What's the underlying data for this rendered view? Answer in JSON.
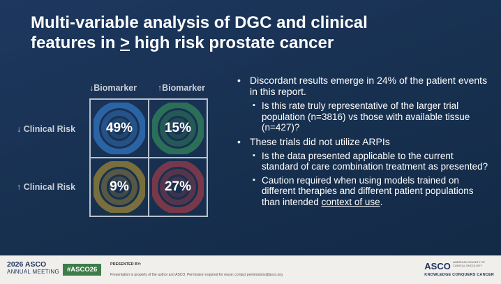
{
  "slide": {
    "title_line1": "Multi-variable analysis of DGC and clinical",
    "title_line2_prefix": "features in ",
    "title_line2_underlined": ">",
    "title_line2_suffix": " high risk prostate cancer"
  },
  "matrix": {
    "col_labels": [
      "↓Biomarker",
      "↑Biomarker"
    ],
    "row_labels": [
      "↓ Clinical Risk",
      "↑ Clinical Risk"
    ],
    "cells": [
      {
        "value": "49%",
        "color": "#2f6db3"
      },
      {
        "value": "15%",
        "color": "#2f7a5a"
      },
      {
        "value": "9%",
        "color": "#8a7a3a"
      },
      {
        "value": "27%",
        "color": "#8a3a4a"
      }
    ]
  },
  "bullets": [
    {
      "text": "Discordant results emerge in 24% of the patient events in this report.",
      "sub": [
        {
          "text": "Is this rate truly representative of the larger trial population (n=3816) vs those with available tissue (n=427)?"
        }
      ]
    },
    {
      "text": "These trials did not utilize ARPIs",
      "sub": [
        {
          "text": "Is the data presented applicable to the current standard of care combination treatment as presented?"
        },
        {
          "text_before": "Caution required when using models trained on different therapies and different patient populations than intended ",
          "link": "context of use",
          "text_after": "."
        }
      ]
    }
  ],
  "footer": {
    "year": "2026",
    "asco": "ASCO",
    "meeting": "ANNUAL MEETING",
    "hashtag": "#ASCO26",
    "presented_by": "PRESENTED BY:",
    "notice": "Presentation is property of the author and ASCO. Permission required for reuse; contact permissions@asco.org",
    "right_asco": "ASCO",
    "society": "AMERICAN SOCIETY OF CLINICAL ONCOLOGY",
    "tagline": "KNOWLEDGE CONQUERS CANCER"
  }
}
